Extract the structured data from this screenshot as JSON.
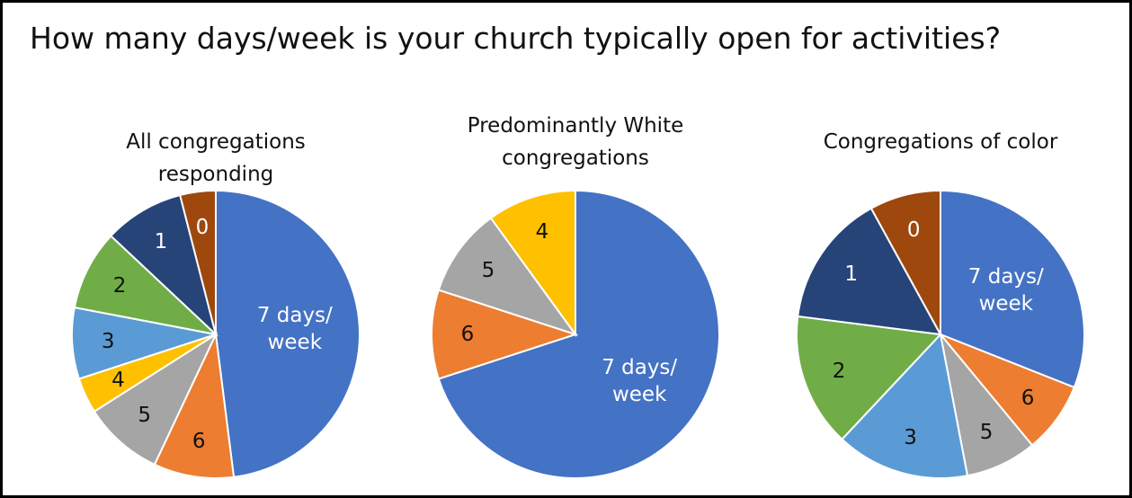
{
  "title": "How many days/week is your church typically open for activities?",
  "chart_data": [
    {
      "type": "pie",
      "title": "All congregations responding",
      "categories": [
        "7 days/ week",
        "6",
        "5",
        "4",
        "3",
        "2",
        "1",
        "0"
      ],
      "values": [
        48,
        9,
        9,
        4,
        8,
        9,
        9,
        4
      ],
      "colors": [
        "#4472c4",
        "#ed7d31",
        "#a5a5a5",
        "#ffc000",
        "#5b9bd5",
        "#70ad47",
        "#264478",
        "#9e480e"
      ]
    },
    {
      "type": "pie",
      "title": "Predominantly White congregations",
      "categories": [
        "7 days/ week",
        "6",
        "5",
        "4"
      ],
      "values": [
        70,
        10,
        10,
        10
      ],
      "colors": [
        "#4472c4",
        "#ed7d31",
        "#a5a5a5",
        "#ffc000"
      ]
    },
    {
      "type": "pie",
      "title": "Congregations of color",
      "categories": [
        "7 days/ week",
        "6",
        "5",
        "3",
        "2",
        "1",
        "0"
      ],
      "values": [
        31,
        8,
        8,
        15,
        15,
        15,
        8
      ],
      "colors": [
        "#4472c4",
        "#ed7d31",
        "#a5a5a5",
        "#5b9bd5",
        "#70ad47",
        "#264478",
        "#9e480e"
      ]
    }
  ]
}
